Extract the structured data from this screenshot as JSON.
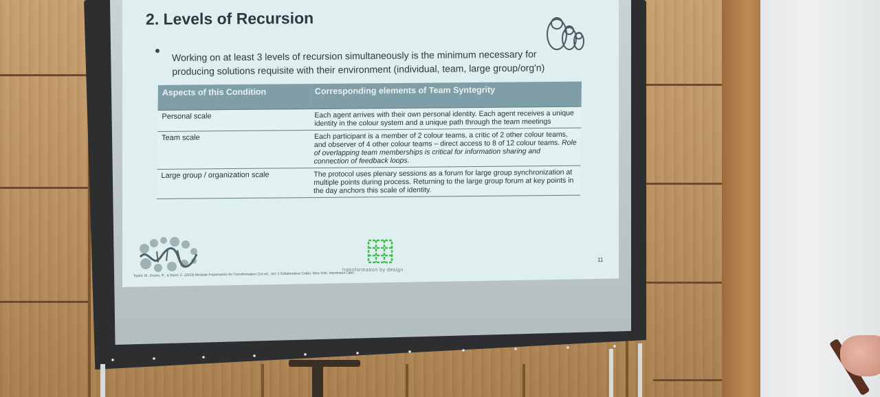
{
  "slide": {
    "title": "2. Levels of Recursion",
    "bullet": "Working on at least 3 levels of recursion simultaneously is the minimum necessary for producing solutions requisite with their environment (individual, team, large group/org'n)",
    "table": {
      "headers": [
        "Aspects of this Condition",
        "Corresponding elements of Team Syntegrity"
      ],
      "rows": [
        {
          "aspect": "Personal scale",
          "element": "Each agent arrives with their own personal identity.  Each agent receives a unique identity in the colour system and a unique path through the team meetings",
          "note": ""
        },
        {
          "aspect": "Team scale",
          "element": "Each participant is a member of 2 colour teams, a critic of 2 other colour teams, and observer of 4 other colour teams – direct access to 8 of 12 colour teams.",
          "note": "Role of overlapping team memberships is critical for information sharing and connection of feedback loops."
        },
        {
          "aspect": "Large group / organization scale",
          "element": "The protocol uses plenary sessions as a forum for large group synchronization at multiple points during process.  Returning to the large group forum at key points in the day anchors this scale of identity.",
          "note": ""
        }
      ]
    },
    "brand": "transformation by design",
    "page_number": "11",
    "citation": "Taylor, M., Evans, R., & Baird, C. (2019) Modular Frameworks for Transformation (1st ed., Vol. 3 Collaborative Code). New York: Imprimatur Labs."
  },
  "icons": {
    "dolls": "matryoshka-dolls-icon",
    "left_logo": "network-blob-logo",
    "mid_logo": "green-grid-logo"
  },
  "colors": {
    "slide_bg": "#dfeeee",
    "table_header": "#7f9ea8",
    "title_text": "#2a3a40",
    "logo_green": "#3fbf4f"
  }
}
